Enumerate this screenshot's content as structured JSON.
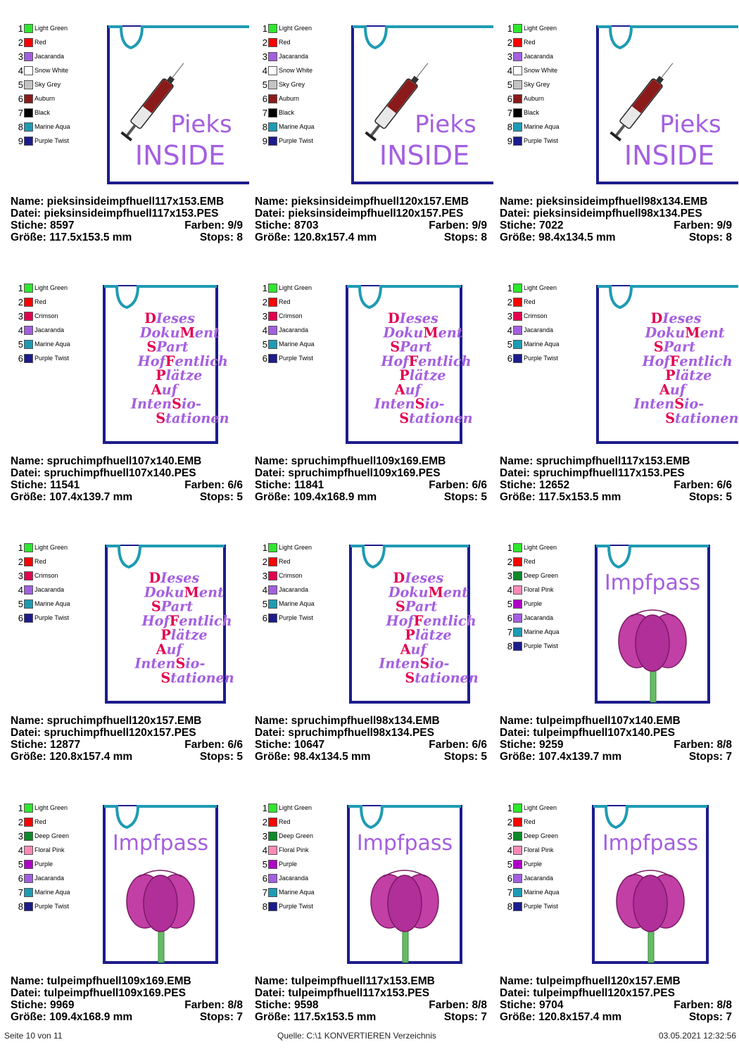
{
  "colors": {
    "Light Green": "#2ee82e",
    "Red": "#ff0000",
    "Jacaranda": "#a45fe0",
    "Snow White": "#ffffff",
    "Sky Grey": "#c4c4c4",
    "Auburn": "#8b1a1a",
    "Black": "#000000",
    "Marine Aqua": "#1e9bb3",
    "Purple Twist": "#1c1c8c",
    "Crimson": "#e3004f",
    "Deep Green": "#0e8a2a",
    "Floral Pink": "#ff8ab8",
    "Purple": "#b000c8"
  },
  "designs": [
    {
      "type": "pieks",
      "name": "Name: pieksinsideimpfhuell117x153.EMB",
      "file": "Datei: pieksinsideimpfhuell117x153.PES",
      "stitches": "Stiche: 8597",
      "colors_count": "Farben: 9/9",
      "size": "Größe: 117.5x153.5 mm",
      "stops": "Stops: 8",
      "legend": [
        "Light Green",
        "Red",
        "Jacaranda",
        "Snow White",
        "Sky Grey",
        "Auburn",
        "Black",
        "Marine Aqua",
        "Purple Twist"
      ],
      "line1": "Pieks",
      "line2": "INSIDE"
    },
    {
      "type": "pieks",
      "name": "Name: pieksinsideimpfhuell120x157.EMB",
      "file": "Datei: pieksinsideimpfhuell120x157.PES",
      "stitches": "Stiche: 8703",
      "colors_count": "Farben: 9/9",
      "size": "Größe: 120.8x157.4 mm",
      "stops": "Stops: 8",
      "legend": [
        "Light Green",
        "Red",
        "Jacaranda",
        "Snow White",
        "Sky Grey",
        "Auburn",
        "Black",
        "Marine Aqua",
        "Purple Twist"
      ],
      "line1": "Pieks",
      "line2": "INSIDE"
    },
    {
      "type": "pieks",
      "name": "Name: pieksinsideimpfhuell98x134.EMB",
      "file": "Datei: pieksinsideimpfhuell98x134.PES",
      "stitches": "Stiche: 7022",
      "colors_count": "Farben: 9/9",
      "size": "Größe: 98.4x134.5 mm",
      "stops": "Stops: 8",
      "legend": [
        "Light Green",
        "Red",
        "Jacaranda",
        "Snow White",
        "Sky Grey",
        "Auburn",
        "Black",
        "Marine Aqua",
        "Purple Twist"
      ],
      "line1": "Pieks",
      "line2": "INSIDE"
    },
    {
      "type": "spruch",
      "name": "Name: spruchimpfhuell107x140.EMB",
      "file": "Datei: spruchimpfhuell107x140.PES",
      "stitches": "Stiche: 11541",
      "colors_count": "Farben: 6/6",
      "size": "Größe: 107.4x139.7 mm",
      "stops": "Stops: 5",
      "legend": [
        "Light Green",
        "Red",
        "Crimson",
        "Jacaranda",
        "Marine Aqua",
        "Purple Twist"
      ]
    },
    {
      "type": "spruch",
      "name": "Name: spruchimpfhuell109x169.EMB",
      "file": "Datei: spruchimpfhuell109x169.PES",
      "stitches": "Stiche: 11841",
      "colors_count": "Farben: 6/6",
      "size": "Größe: 109.4x168.9 mm",
      "stops": "Stops: 5",
      "legend": [
        "Light Green",
        "Red",
        "Crimson",
        "Jacaranda",
        "Marine Aqua",
        "Purple Twist"
      ]
    },
    {
      "type": "spruch",
      "name": "Name: spruchimpfhuell117x153.EMB",
      "file": "Datei: spruchimpfhuell117x153.PES",
      "stitches": "Stiche: 12652",
      "colors_count": "Farben: 6/6",
      "size": "Größe: 117.5x153.5 mm",
      "stops": "Stops: 5",
      "legend": [
        "Light Green",
        "Red",
        "Crimson",
        "Jacaranda",
        "Marine Aqua",
        "Purple Twist"
      ]
    },
    {
      "type": "spruch",
      "name": "Name: spruchimpfhuell120x157.EMB",
      "file": "Datei: spruchimpfhuell120x157.PES",
      "stitches": "Stiche: 12877",
      "colors_count": "Farben: 6/6",
      "size": "Größe: 120.8x157.4 mm",
      "stops": "Stops: 5",
      "legend": [
        "Light Green",
        "Red",
        "Crimson",
        "Jacaranda",
        "Marine Aqua",
        "Purple Twist"
      ]
    },
    {
      "type": "spruch",
      "name": "Name: spruchimpfhuell98x134.EMB",
      "file": "Datei: spruchimpfhuell98x134.PES",
      "stitches": "Stiche: 10647",
      "colors_count": "Farben: 6/6",
      "size": "Größe: 98.4x134.5 mm",
      "stops": "Stops: 5",
      "legend": [
        "Light Green",
        "Red",
        "Crimson",
        "Jacaranda",
        "Marine Aqua",
        "Purple Twist"
      ]
    },
    {
      "type": "tulpe",
      "name": "Name: tulpeimpfhuell107x140.EMB",
      "file": "Datei: tulpeimpfhuell107x140.PES",
      "stitches": "Stiche: 9259",
      "colors_count": "Farben: 8/8",
      "size": "Größe: 107.4x139.7 mm",
      "stops": "Stops: 7",
      "legend": [
        "Light Green",
        "Red",
        "Deep Green",
        "Floral Pink",
        "Purple",
        "Jacaranda",
        "Marine Aqua",
        "Purple Twist"
      ],
      "word": "Impfpass"
    },
    {
      "type": "tulpe",
      "name": "Name: tulpeimpfhuell109x169.EMB",
      "file": "Datei: tulpeimpfhuell109x169.PES",
      "stitches": "Stiche: 9969",
      "colors_count": "Farben: 8/8",
      "size": "Größe: 109.4x168.9 mm",
      "stops": "Stops: 7",
      "legend": [
        "Light Green",
        "Red",
        "Deep Green",
        "Floral Pink",
        "Purple",
        "Jacaranda",
        "Marine Aqua",
        "Purple Twist"
      ],
      "word": "Impfpass"
    },
    {
      "type": "tulpe",
      "name": "Name: tulpeimpfhuell117x153.EMB",
      "file": "Datei: tulpeimpfhuell117x153.PES",
      "stitches": "Stiche: 9598",
      "colors_count": "Farben: 8/8",
      "size": "Größe: 117.5x153.5 mm",
      "stops": "Stops: 7",
      "legend": [
        "Light Green",
        "Red",
        "Deep Green",
        "Floral Pink",
        "Purple",
        "Jacaranda",
        "Marine Aqua",
        "Purple Twist"
      ],
      "word": "Impfpass"
    },
    {
      "type": "tulpe",
      "name": "Name: tulpeimpfhuell120x157.EMB",
      "file": "Datei: tulpeimpfhuell120x157.PES",
      "stitches": "Stiche: 9704",
      "colors_count": "Farben: 8/8",
      "size": "Größe: 120.8x157.4 mm",
      "stops": "Stops: 7",
      "legend": [
        "Light Green",
        "Red",
        "Deep Green",
        "Floral Pink",
        "Purple",
        "Jacaranda",
        "Marine Aqua",
        "Purple Twist"
      ],
      "word": "Impfpass"
    }
  ],
  "spruch_lines": [
    {
      "cap": "D",
      "rest": "Ieses"
    },
    {
      "pre": "Doku",
      "cap": "M",
      "rest": "ent"
    },
    {
      "cap": "S",
      "rest": "Part"
    },
    {
      "pre": "Hof",
      "cap": "F",
      "rest": "entlich"
    },
    {
      "cap": "P",
      "rest": "lätze"
    },
    {
      "cap": "A",
      "rest": "uf"
    },
    {
      "pre": "Inten",
      "cap": "S",
      "rest": "io-"
    },
    {
      "cap": "S",
      "rest": "tationen"
    }
  ],
  "footer": {
    "page": "Seite 10 von 11",
    "source": "Quelle: C:\\1 KONVERTIEREN Verzeichnis",
    "date": "03.05.2021 12:32:56"
  }
}
